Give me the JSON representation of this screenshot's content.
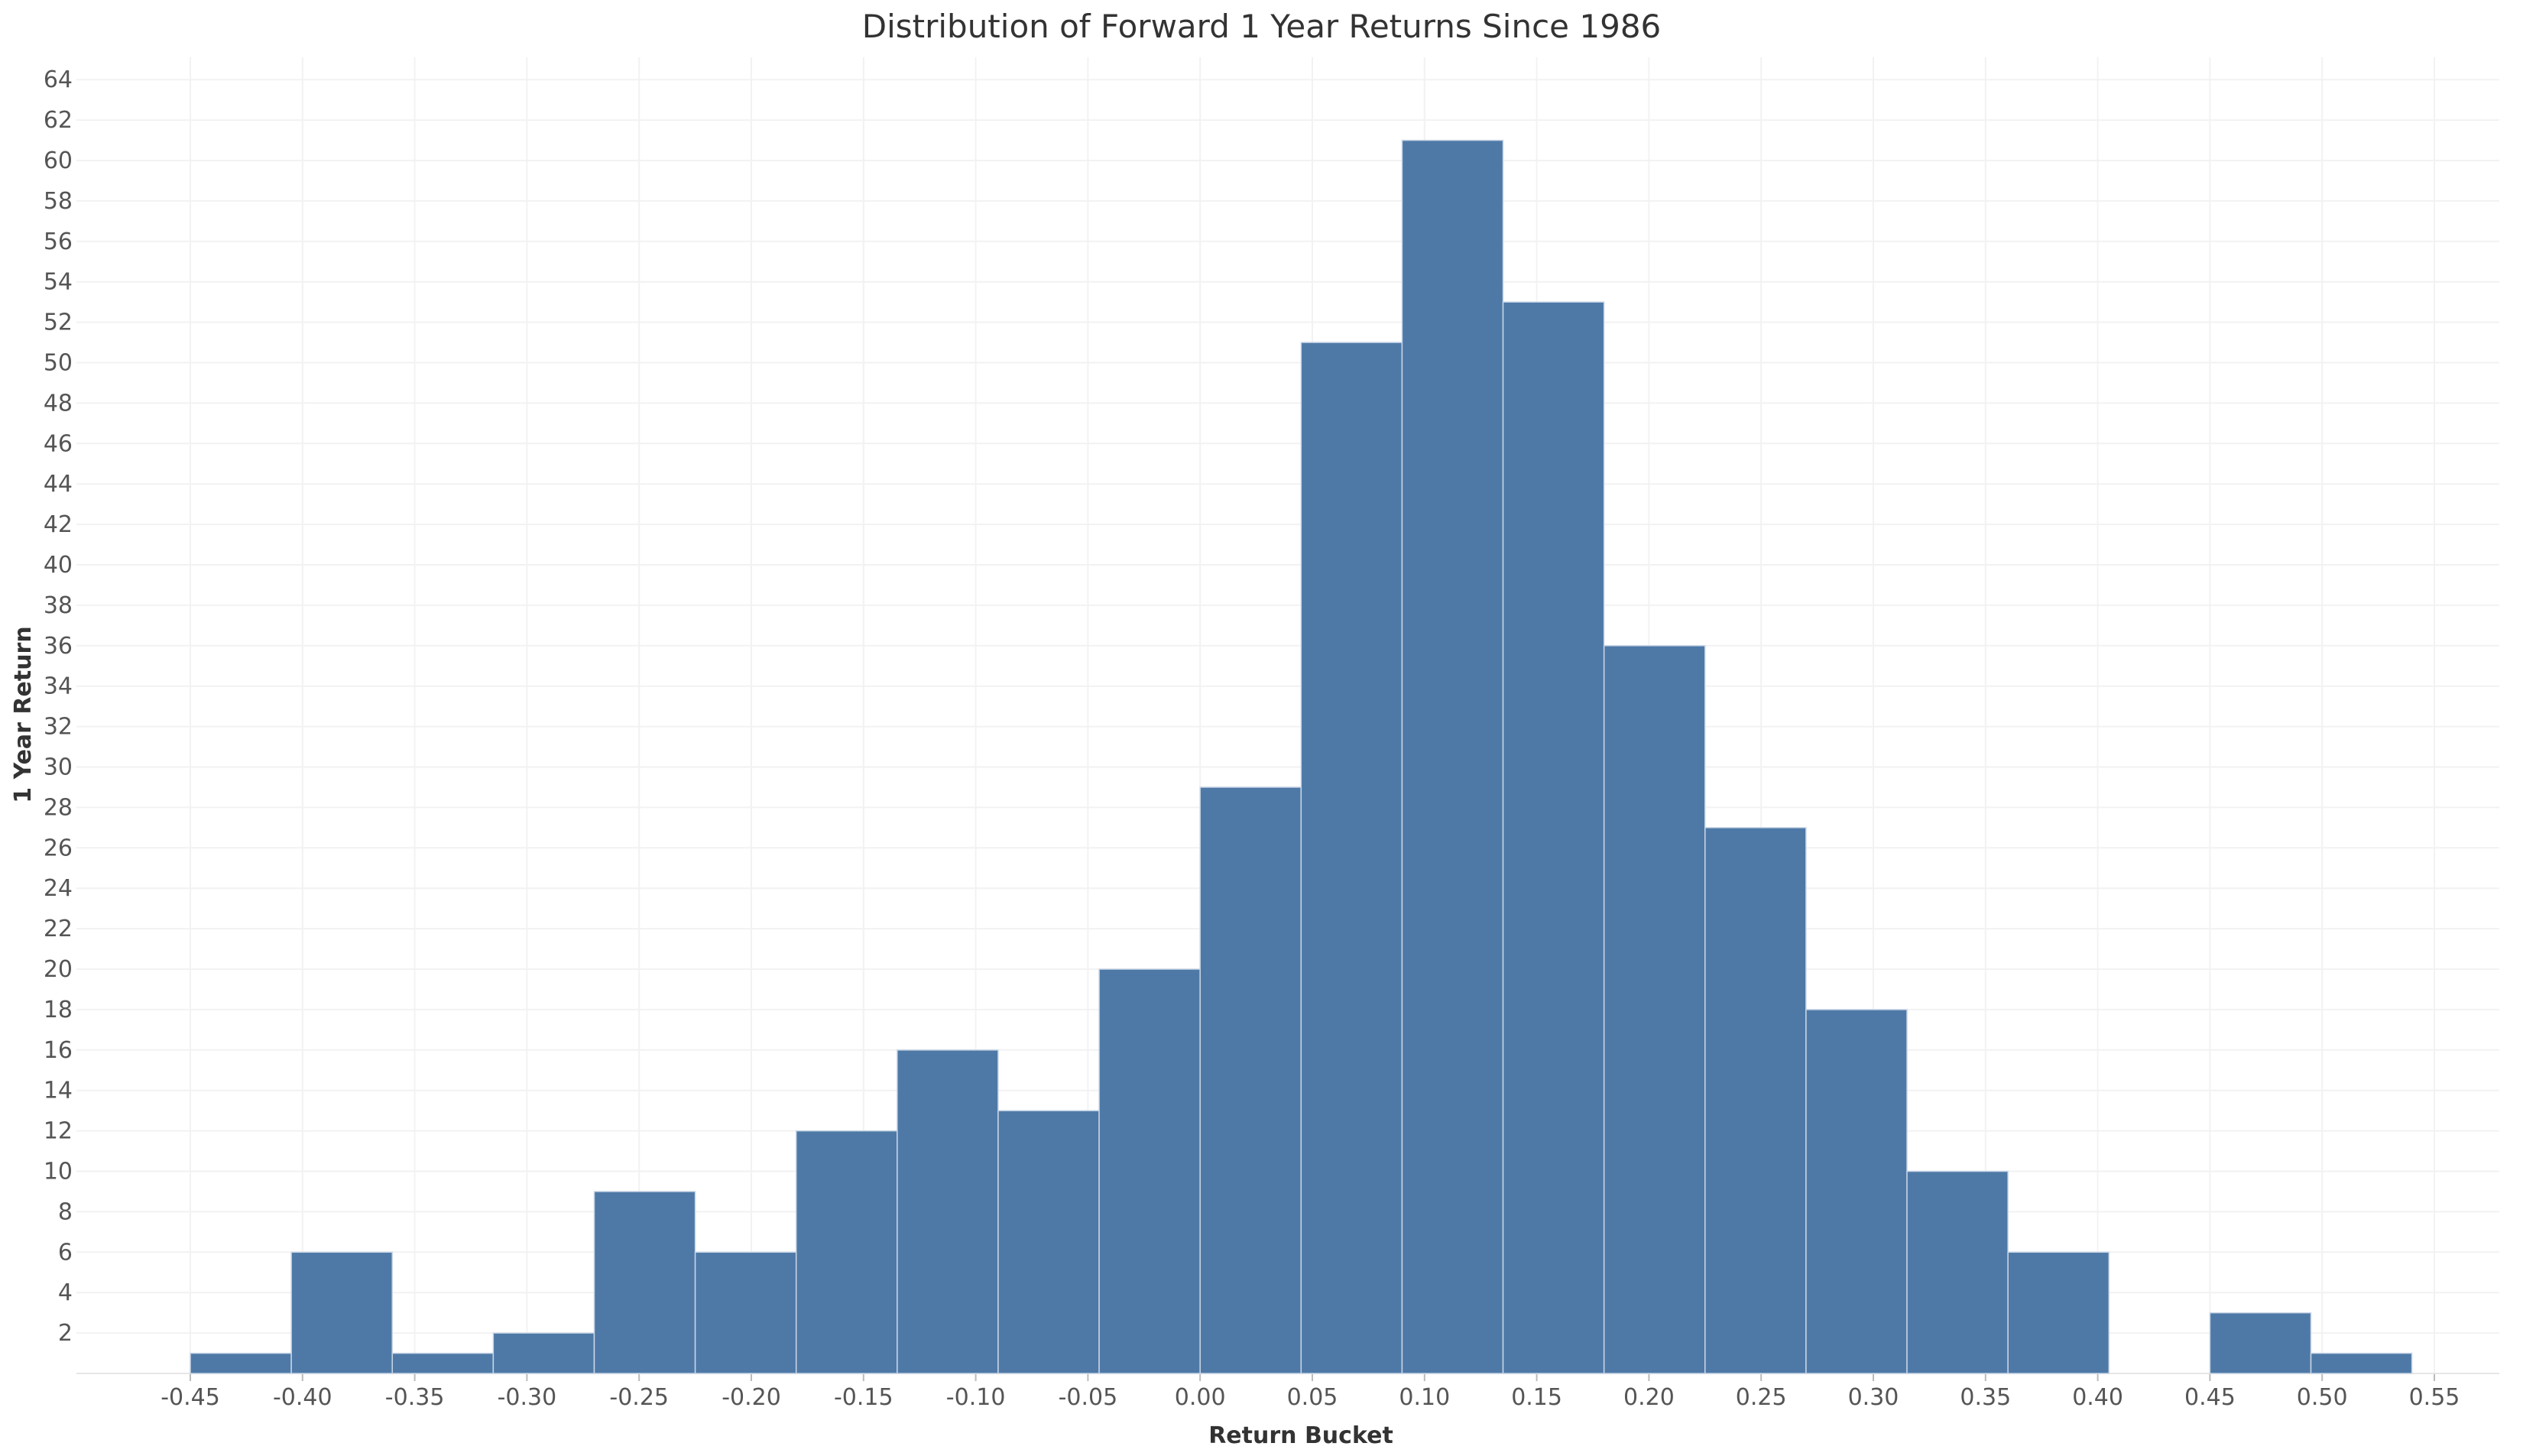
{
  "chart_data": {
    "type": "bar",
    "title": "Distribution of Forward 1 Year Returns Since 1986",
    "xlabel": "Return Bucket",
    "ylabel": "1 Year Return",
    "bin_width": 0.045,
    "bins": [
      {
        "start": -0.45,
        "count": 1
      },
      {
        "start": -0.405,
        "count": 6
      },
      {
        "start": -0.36,
        "count": 1
      },
      {
        "start": -0.315,
        "count": 2
      },
      {
        "start": -0.27,
        "count": 9
      },
      {
        "start": -0.225,
        "count": 6
      },
      {
        "start": -0.18,
        "count": 12
      },
      {
        "start": -0.135,
        "count": 16
      },
      {
        "start": -0.09,
        "count": 13
      },
      {
        "start": -0.045,
        "count": 20
      },
      {
        "start": 0.0,
        "count": 29
      },
      {
        "start": 0.045,
        "count": 51
      },
      {
        "start": 0.09,
        "count": 61
      },
      {
        "start": 0.135,
        "count": 53
      },
      {
        "start": 0.18,
        "count": 36
      },
      {
        "start": 0.225,
        "count": 27
      },
      {
        "start": 0.27,
        "count": 18
      },
      {
        "start": 0.315,
        "count": 10
      },
      {
        "start": 0.36,
        "count": 6
      },
      {
        "start": 0.45,
        "count": 3
      },
      {
        "start": 0.495,
        "count": 1
      }
    ],
    "xlim": [
      -0.5,
      0.56
    ],
    "ylim": [
      0,
      65
    ],
    "x_ticks": [
      "-0.45",
      "-0.40",
      "-0.35",
      "-0.30",
      "-0.25",
      "-0.20",
      "-0.15",
      "-0.10",
      "-0.05",
      "0.00",
      "0.05",
      "0.10",
      "0.15",
      "0.20",
      "0.25",
      "0.30",
      "0.35",
      "0.40",
      "0.45",
      "0.50",
      "0.55"
    ],
    "y_ticks": [
      "2",
      "4",
      "6",
      "8",
      "10",
      "12",
      "14",
      "16",
      "18",
      "20",
      "22",
      "24",
      "26",
      "28",
      "30",
      "32",
      "34",
      "36",
      "38",
      "40",
      "42",
      "44",
      "46",
      "48",
      "50",
      "52",
      "54",
      "56",
      "58",
      "60",
      "62",
      "64"
    ],
    "grid": true,
    "colors": {
      "bar": "#4e79a7",
      "bar_edge": "#c9d6e6",
      "grid": "#f2f2f2"
    }
  }
}
